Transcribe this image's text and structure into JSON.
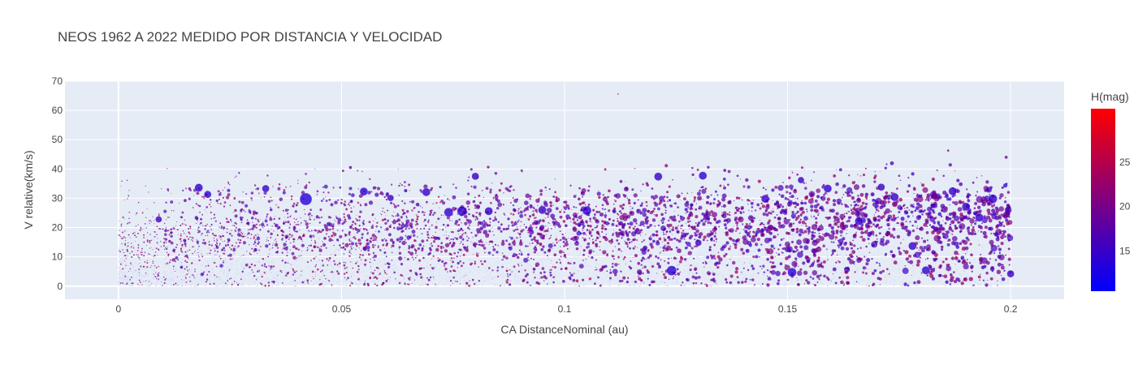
{
  "chart_data": {
    "type": "scatter",
    "title": "NEOS 1962 A 2022 MEDIDO POR DISTANCIA Y VELOCIDAD",
    "xlabel": "CA DistanceNominal (au)",
    "ylabel": "V relative(km/s)",
    "xlim": [
      -0.012,
      0.212
    ],
    "ylim": [
      -4.5,
      70
    ],
    "xticks": [
      0,
      0.05,
      0.1,
      0.15,
      0.2
    ],
    "xtick_labels": [
      "0",
      "0.05",
      "0.1",
      "0.15",
      "0.2"
    ],
    "yticks": [
      0,
      10,
      20,
      30,
      40,
      50,
      60,
      70
    ],
    "ytick_labels": [
      "0",
      "10",
      "20",
      "30",
      "40",
      "50",
      "60",
      "70"
    ],
    "colorbar": {
      "title": "H(mag)",
      "range": [
        10.5,
        31
      ],
      "ticks": [
        15,
        20,
        25
      ],
      "tick_labels": [
        "15",
        "20",
        "25"
      ],
      "colorscale": [
        "#0000ff",
        "#ff0000"
      ]
    },
    "marker_size_encodes": "object size (larger bubbles = brighter H(mag))",
    "points": [
      {
        "x": 0.018,
        "y": 33.6,
        "h": 14.2,
        "s": 5
      },
      {
        "x": 0.02,
        "y": 31.3,
        "h": 14.5,
        "s": 4.5
      },
      {
        "x": 0.033,
        "y": 33.3,
        "h": 14.8,
        "s": 4.5
      },
      {
        "x": 0.042,
        "y": 29.7,
        "h": 13.5,
        "s": 7.5
      },
      {
        "x": 0.055,
        "y": 32.3,
        "h": 14.2,
        "s": 5
      },
      {
        "x": 0.061,
        "y": 30.1,
        "h": 15.0,
        "s": 4
      },
      {
        "x": 0.069,
        "y": 32.1,
        "h": 14.4,
        "s": 5
      },
      {
        "x": 0.074,
        "y": 25.2,
        "h": 14.6,
        "s": 5.5
      },
      {
        "x": 0.077,
        "y": 25.6,
        "h": 14.3,
        "s": 6
      },
      {
        "x": 0.08,
        "y": 37.5,
        "h": 15.0,
        "s": 4.5
      },
      {
        "x": 0.083,
        "y": 25.6,
        "h": 14.8,
        "s": 5
      },
      {
        "x": 0.095,
        "y": 26.0,
        "h": 14.9,
        "s": 5
      },
      {
        "x": 0.105,
        "y": 25.8,
        "h": 14.2,
        "s": 5.5
      },
      {
        "x": 0.121,
        "y": 37.4,
        "h": 14.7,
        "s": 5
      },
      {
        "x": 0.124,
        "y": 5.3,
        "h": 13.9,
        "s": 6
      },
      {
        "x": 0.131,
        "y": 37.7,
        "h": 14.3,
        "s": 5
      },
      {
        "x": 0.13,
        "y": 14.8,
        "h": 15.5,
        "s": 4
      },
      {
        "x": 0.145,
        "y": 29.8,
        "h": 14.6,
        "s": 5
      },
      {
        "x": 0.151,
        "y": 4.7,
        "h": 13.8,
        "s": 5.5
      },
      {
        "x": 0.153,
        "y": 36.2,
        "h": 15.2,
        "s": 4
      },
      {
        "x": 0.159,
        "y": 33.3,
        "h": 14.5,
        "s": 5
      },
      {
        "x": 0.166,
        "y": 22.2,
        "h": 14.6,
        "s": 5
      },
      {
        "x": 0.171,
        "y": 33.8,
        "h": 15.0,
        "s": 4.5
      },
      {
        "x": 0.174,
        "y": 30.4,
        "h": 14.5,
        "s": 5
      },
      {
        "x": 0.178,
        "y": 13.7,
        "h": 14.8,
        "s": 5
      },
      {
        "x": 0.181,
        "y": 5.4,
        "h": 14.0,
        "s": 5
      },
      {
        "x": 0.187,
        "y": 32.4,
        "h": 14.6,
        "s": 5
      },
      {
        "x": 0.19,
        "y": 27.1,
        "h": 14.4,
        "s": 5
      },
      {
        "x": 0.193,
        "y": 23.4,
        "h": 14.7,
        "s": 5
      },
      {
        "x": 0.196,
        "y": 29.8,
        "h": 14.2,
        "s": 5.5
      },
      {
        "x": 0.2,
        "y": 4.2,
        "h": 15.0,
        "s": 4.5
      },
      {
        "x": 0.009,
        "y": 22.8,
        "h": 15.0,
        "s": 4
      },
      {
        "x": 0.052,
        "y": 40.5,
        "h": 19.0,
        "s": 2
      },
      {
        "x": 0.112,
        "y": 65.6,
        "h": 24.0,
        "s": 1
      },
      {
        "x": 0.186,
        "y": 46.3,
        "h": 20.0,
        "s": 1.5
      },
      {
        "x": 0.199,
        "y": 44.0,
        "h": 19.0,
        "s": 2
      }
    ]
  }
}
